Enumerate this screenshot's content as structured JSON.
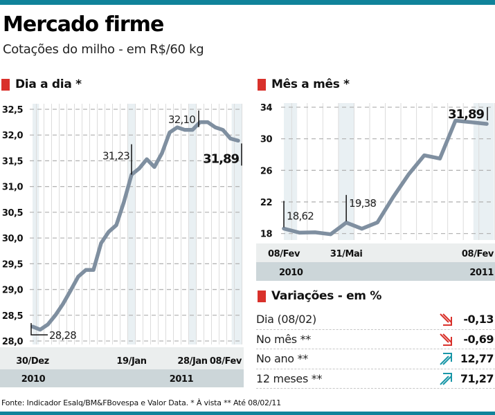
{
  "header": {
    "title": "Mercado firme",
    "subtitle": "Cotações do milho - em R$/60 kg"
  },
  "colors": {
    "brand_bar": "#10839a",
    "section_marker": "#d9312b",
    "line": "#7f8fa0",
    "band": "#e9f0f3",
    "axis_band": "#ebeeee",
    "year_band": "#ccd6d9",
    "down": "#d9312b",
    "up": "#1a97a8"
  },
  "chart_data": [
    {
      "type": "line",
      "title": "Dia a dia *",
      "ylim": [
        28.0,
        32.5
      ],
      "yticks": [
        "32,5",
        "32,0",
        "31,5",
        "31,0",
        "30,5",
        "30,0",
        "29,5",
        "29,0",
        "28,5",
        "28,0"
      ],
      "ytick_values": [
        32.5,
        32.0,
        31.5,
        31.0,
        30.5,
        30.0,
        29.5,
        29.0,
        28.5,
        28.0
      ],
      "grid": true,
      "x_labels": [
        "30/Dez",
        "19/Jan",
        "28/Jan",
        "08/Fev"
      ],
      "x_label_index": [
        0,
        13,
        21,
        27
      ],
      "year_labels": [
        "2010",
        "2011"
      ],
      "values": [
        28.28,
        28.22,
        28.32,
        28.5,
        28.72,
        28.98,
        29.25,
        29.38,
        29.38,
        29.9,
        30.12,
        30.25,
        30.7,
        31.23,
        31.35,
        31.53,
        31.38,
        31.65,
        32.05,
        32.15,
        32.1,
        32.1,
        32.25,
        32.25,
        32.15,
        32.1,
        31.93,
        31.89
      ],
      "annotations": [
        {
          "label": "28,28",
          "index": 0,
          "value": 28.28
        },
        {
          "label": "31,23",
          "index": 13,
          "value": 31.23
        },
        {
          "label": "32,10",
          "index": 21,
          "value": 32.1
        },
        {
          "label": "31,89",
          "index": 27,
          "value": 31.89,
          "bold": true
        }
      ]
    },
    {
      "type": "line",
      "title": "Mês a mês *",
      "ylim": [
        17.0,
        34.0
      ],
      "yticks": [
        "34",
        "30",
        "26",
        "22",
        "18"
      ],
      "ytick_values": [
        34,
        30,
        26,
        22,
        18
      ],
      "grid": true,
      "x_labels": [
        "08/Fev",
        "31/Mai",
        "08/Fev"
      ],
      "x_label_index": [
        0,
        4,
        13
      ],
      "year_labels": [
        "2010",
        "2011"
      ],
      "values": [
        18.62,
        18.1,
        18.15,
        17.9,
        19.38,
        18.6,
        19.4,
        22.6,
        25.5,
        27.9,
        27.5,
        32.3,
        32.1,
        31.89
      ],
      "annotations": [
        {
          "label": "18,62",
          "index": 0,
          "value": 18.62
        },
        {
          "label": "19,38",
          "index": 4,
          "value": 19.38
        },
        {
          "label": "31,89",
          "index": 13,
          "value": 31.89,
          "bold": true
        }
      ]
    }
  ],
  "variations": {
    "title": "Variações - em %",
    "rows": [
      {
        "label": "Dia (08/02)",
        "value": "-0,13",
        "direction": "down"
      },
      {
        "label": "No mês **",
        "value": "-0,69",
        "direction": "down"
      },
      {
        "label": "No ano **",
        "value": "12,77",
        "direction": "up"
      },
      {
        "label": "12 meses **",
        "value": "71,27",
        "direction": "up"
      }
    ]
  },
  "footnote": "Fonte: Indicador Esalq/BM&FBovespa e Valor Data. * À vista ** Até 08/02/11"
}
